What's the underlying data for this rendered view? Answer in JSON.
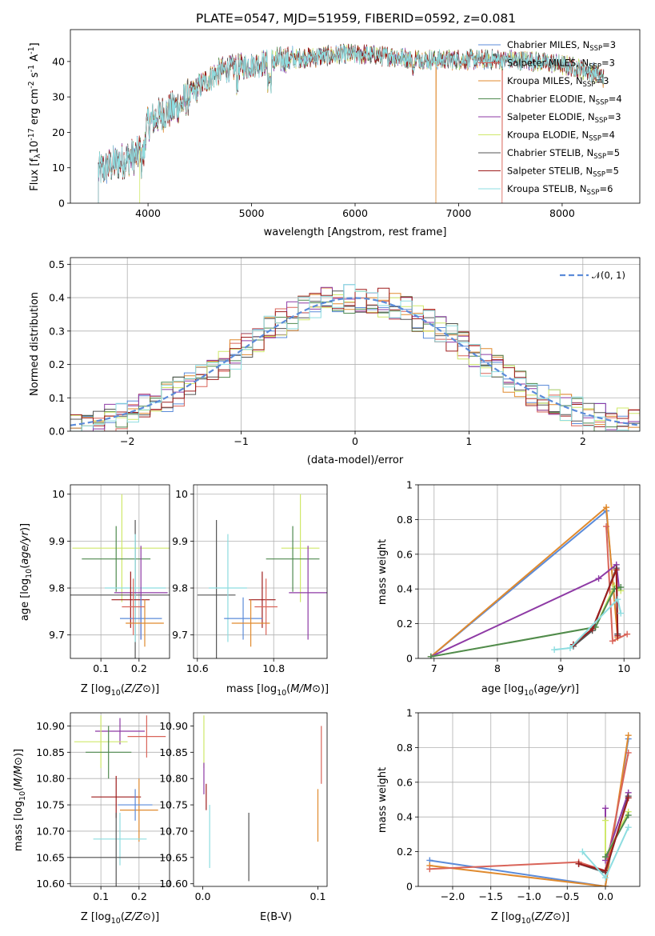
{
  "page_title": "PLATE=0547, MJD=51959, FIBERID=0592, z=0.081",
  "chart_data": [
    {
      "type": "line",
      "title": "PLATE=0547, MJD=51959, FIBERID=0592, z=0.081",
      "xlabel": "wavelength [Angstrom, rest frame]",
      "ylabel_parts": [
        "Flux [f",
        "λ",
        "10",
        "-17",
        " erg cm",
        "-2",
        " s",
        "-1",
        " A",
        "-1",
        "]"
      ],
      "xlim": [
        3250,
        8750
      ],
      "ylim": [
        0,
        49
      ],
      "xticks": [
        4000,
        5000,
        6000,
        7000,
        8000
      ],
      "yticks": [
        0,
        10,
        20,
        30,
        40
      ],
      "grid": false,
      "legend_position": "upper right",
      "legend_sub": "SSP",
      "spectrum_envelope": {
        "x": [
          3520,
          3700,
          3900,
          4000,
          4100,
          4300,
          4500,
          4700,
          4900,
          5100,
          5300,
          5500,
          5700,
          5900,
          6100,
          6300,
          6500,
          6700,
          6900,
          7100,
          7300,
          7500,
          7700,
          7900,
          8100,
          8300,
          8400
        ],
        "y": [
          9,
          11.5,
          13.5,
          22.5,
          24.5,
          27.5,
          33,
          37.5,
          38.5,
          39.5,
          40.5,
          41,
          41.5,
          42,
          42,
          41.5,
          41,
          40.5,
          40.5,
          40.5,
          40.5,
          40.5,
          40.2,
          39.5,
          38.5,
          37,
          35.5
        ]
      },
      "series": [
        {
          "name": "Chabrier MILES",
          "nssp": "3",
          "color": "#5b8bd9",
          "lw": 0.8
        },
        {
          "name": "Salpeter MILES",
          "nssp": "3",
          "color": "#d96459",
          "lw": 0.8
        },
        {
          "name": "Kroupa MILES",
          "nssp": "3",
          "color": "#e08a2e",
          "lw": 0.8
        },
        {
          "name": "Chabrier ELODIE",
          "nssp": "4",
          "color": "#4f8a4f",
          "lw": 0.8
        },
        {
          "name": "Salpeter ELODIE",
          "nssp": "3",
          "color": "#8e3aa5",
          "lw": 0.8
        },
        {
          "name": "Kroupa ELODIE",
          "nssp": "4",
          "color": "#cfe86a",
          "lw": 0.8
        },
        {
          "name": "Chabrier STELIB",
          "nssp": "5",
          "color": "#555555",
          "lw": 0.8
        },
        {
          "name": "Salpeter STELIB",
          "nssp": "5",
          "color": "#9e1c1c",
          "lw": 0.8
        },
        {
          "name": "Kroupa STELIB",
          "nssp": "6",
          "color": "#8edde0",
          "lw": 0.8
        }
      ],
      "spectrum_starts": [
        {
          "series": "Salpeter MILES",
          "x": 3520
        },
        {
          "series": "Kroupa ELODIE",
          "x": 3920
        }
      ],
      "spectrum_gaps": [
        {
          "series": "Kroupa MILES",
          "x": 6780
        },
        {
          "series": "Salpeter MILES",
          "x": 7420
        }
      ],
      "spectrum_end": 8400
    },
    {
      "type": "step",
      "xlabel": "(data-model)/error",
      "ylabel": "Normed distribution",
      "xlim": [
        -2.5,
        2.5
      ],
      "ylim": [
        0,
        0.52
      ],
      "xticks": [
        -2,
        -1,
        0,
        1,
        2
      ],
      "xtick_labels": [
        "−2",
        "−1",
        "0",
        "1",
        "2"
      ],
      "yticks": [
        0.0,
        0.1,
        0.2,
        0.3,
        0.4,
        0.5
      ],
      "ytick_labels": [
        "0.0",
        "0.1",
        "0.2",
        "0.3",
        "0.4",
        "0.5"
      ],
      "grid": true,
      "reference_curve": {
        "name": "𝒩(0, 1)",
        "mean": 0,
        "sigma": 1,
        "color": "#5b8bd9"
      },
      "bin_edges_start": -2.5,
      "bin_width": 0.1
    },
    {
      "type": "errorbar",
      "xlabel": "Z [log10(Z/Z⊙)]",
      "ylabel": "age  [log10(age/yr)]",
      "xlim": [
        0.02,
        0.28
      ],
      "ylim": [
        9.65,
        10.02
      ],
      "xticks": [
        0.1,
        0.2
      ],
      "yticks": [
        9.7,
        9.8,
        9.9,
        10.0
      ],
      "grid": true,
      "points": [
        {
          "series": "Kroupa ELODIE",
          "x": 0.155,
          "y": 9.885,
          "xerr": 0.13,
          "yerr": 0.115
        },
        {
          "series": "Chabrier ELODIE",
          "x": 0.14,
          "y": 9.862,
          "xerr": 0.09,
          "yerr": 0.07
        },
        {
          "series": "Chabrier STELIB",
          "x": 0.19,
          "y": 9.785,
          "xerr": 0.18,
          "yerr": 0.16
        },
        {
          "series": "Kroupa STELIB",
          "x": 0.19,
          "y": 9.8,
          "xerr": 0.08,
          "yerr": 0.115
        },
        {
          "series": "Salpeter ELODIE",
          "x": 0.205,
          "y": 9.79,
          "xerr": 0.07,
          "yerr": 0.1
        },
        {
          "series": "Salpeter STELIB",
          "x": 0.178,
          "y": 9.775,
          "xerr": 0.05,
          "yerr": 0.06
        },
        {
          "series": "Chabrier MILES",
          "x": 0.205,
          "y": 9.735,
          "xerr": 0.055,
          "yerr": 0.045
        },
        {
          "series": "Kroupa MILES",
          "x": 0.215,
          "y": 9.725,
          "xerr": 0.05,
          "yerr": 0.05
        },
        {
          "series": "Salpeter MILES",
          "x": 0.185,
          "y": 9.76,
          "xerr": 0.03,
          "yerr": 0.06
        }
      ]
    },
    {
      "type": "errorbar",
      "xlabel": "mass [log10(M/M⊙)]",
      "xlim": [
        10.59,
        10.94
      ],
      "ylim": [
        9.65,
        10.02
      ],
      "xticks": [
        10.6,
        10.8
      ],
      "yticks": [
        9.7,
        9.8,
        9.9,
        10.0
      ],
      "grid": true,
      "points": [
        {
          "series": "Kroupa ELODIE",
          "x": 10.87,
          "y": 9.885,
          "xerr": 0.05,
          "yerr": 0.115
        },
        {
          "series": "Chabrier ELODIE",
          "x": 10.85,
          "y": 9.862,
          "xerr": 0.07,
          "yerr": 0.07
        },
        {
          "series": "Chabrier STELIB",
          "x": 10.65,
          "y": 9.785,
          "xerr": 0.05,
          "yerr": 0.16
        },
        {
          "series": "Kroupa STELIB",
          "x": 10.68,
          "y": 9.8,
          "xerr": 0.05,
          "yerr": 0.115
        },
        {
          "series": "Salpeter ELODIE",
          "x": 10.89,
          "y": 9.79,
          "xerr": 0.05,
          "yerr": 0.1
        },
        {
          "series": "Salpeter STELIB",
          "x": 10.77,
          "y": 9.775,
          "xerr": 0.035,
          "yerr": 0.06
        },
        {
          "series": "Chabrier MILES",
          "x": 10.72,
          "y": 9.735,
          "xerr": 0.05,
          "yerr": 0.045
        },
        {
          "series": "Kroupa MILES",
          "x": 10.74,
          "y": 9.725,
          "xerr": 0.05,
          "yerr": 0.05
        },
        {
          "series": "Salpeter MILES",
          "x": 10.78,
          "y": 9.76,
          "xerr": 0.03,
          "yerr": 0.06
        }
      ]
    },
    {
      "type": "line",
      "xlabel": "age  [log10(age/yr)]",
      "ylabel": "mass weight",
      "xlim": [
        6.75,
        10.25
      ],
      "ylim": [
        0,
        1.0
      ],
      "xticks": [
        7,
        8,
        9,
        10
      ],
      "yticks": [
        0.0,
        0.2,
        0.4,
        0.6,
        0.8,
        1.0
      ],
      "grid": true,
      "series": [
        {
          "name": "Chabrier MILES",
          "x": [
            6.95,
            9.72,
            9.9
          ],
          "y": [
            0.01,
            0.85,
            0.14
          ]
        },
        {
          "name": "Kroupa MILES",
          "x": [
            6.95,
            9.72,
            9.9
          ],
          "y": [
            0.01,
            0.87,
            0.12
          ]
        },
        {
          "name": "Salpeter MILES",
          "x": [
            9.72,
            9.82,
            10.05
          ],
          "y": [
            0.76,
            0.1,
            0.14
          ]
        },
        {
          "name": "Salpeter ELODIE",
          "x": [
            6.95,
            9.6,
            9.88,
            9.92
          ],
          "y": [
            0.01,
            0.46,
            0.54,
            0.41
          ]
        },
        {
          "name": "Kroupa ELODIE",
          "x": [
            6.95,
            9.55,
            9.85,
            9.95
          ],
          "y": [
            0.01,
            0.18,
            0.42,
            0.39
          ]
        },
        {
          "name": "Chabrier ELODIE",
          "x": [
            6.95,
            9.55,
            9.85,
            9.95
          ],
          "y": [
            0.01,
            0.18,
            0.4,
            0.41
          ]
        },
        {
          "name": "Chabrier STELIB",
          "x": [
            9.2,
            9.5,
            9.88,
            9.9
          ],
          "y": [
            0.07,
            0.16,
            0.52,
            0.14
          ]
        },
        {
          "name": "Salpeter STELIB",
          "x": [
            9.2,
            9.5,
            9.88,
            9.9
          ],
          "y": [
            0.08,
            0.17,
            0.51,
            0.13
          ]
        },
        {
          "name": "Kroupa STELIB",
          "x": [
            8.9,
            9.15,
            9.9,
            9.95
          ],
          "y": [
            0.05,
            0.06,
            0.34,
            0.26
          ]
        }
      ]
    },
    {
      "type": "errorbar",
      "xlabel": "Z [log10(Z/Z⊙)]",
      "ylabel": "mass [log10(M/M⊙)]",
      "xlim": [
        0.02,
        0.28
      ],
      "ylim": [
        10.595,
        10.925
      ],
      "xticks": [
        0.1,
        0.2
      ],
      "yticks": [
        10.6,
        10.65,
        10.7,
        10.75,
        10.8,
        10.85,
        10.9
      ],
      "ytick_labels": [
        "10.60",
        "10.65",
        "10.70",
        "10.75",
        "10.80",
        "10.85",
        "10.90"
      ],
      "grid": true,
      "points": [
        {
          "series": "Salpeter ELODIE",
          "x": 0.15,
          "y": 10.89,
          "xerr": 0.065,
          "yerr": 0.025
        },
        {
          "series": "Kroupa ELODIE",
          "x": 0.1,
          "y": 10.87,
          "xerr": 0.07,
          "yerr": 0.05
        },
        {
          "series": "Chabrier ELODIE",
          "x": 0.12,
          "y": 10.85,
          "xerr": 0.06,
          "yerr": 0.05
        },
        {
          "series": "Salpeter MILES",
          "x": 0.22,
          "y": 10.88,
          "xerr": 0.05,
          "yerr": 0.04
        },
        {
          "series": "Salpeter STELIB",
          "x": 0.14,
          "y": 10.765,
          "xerr": 0.065,
          "yerr": 0.04
        },
        {
          "series": "Kroupa MILES",
          "x": 0.2,
          "y": 10.74,
          "xerr": 0.05,
          "yerr": 0.06
        },
        {
          "series": "Chabrier MILES",
          "x": 0.19,
          "y": 10.75,
          "xerr": 0.045,
          "yerr": 0.03
        },
        {
          "series": "Kroupa STELIB",
          "x": 0.15,
          "y": 10.685,
          "xerr": 0.07,
          "yerr": 0.05
        },
        {
          "series": "Chabrier STELIB",
          "x": 0.14,
          "y": 10.65,
          "xerr": 0.13,
          "yerr": 0.085
        }
      ]
    },
    {
      "type": "errorbar",
      "xlabel": "E(B-V)",
      "xlim": [
        -0.008,
        0.108
      ],
      "ylim": [
        10.595,
        10.925
      ],
      "xticks": [
        0.0,
        0.1
      ],
      "xtick_labels": [
        "0.0",
        "0.1"
      ],
      "yticks": [
        10.6,
        10.65,
        10.7,
        10.75,
        10.8,
        10.85,
        10.9
      ],
      "ytick_labels": [
        "10.60",
        "10.65",
        "10.70",
        "10.75",
        "10.80",
        "10.85",
        "10.90"
      ],
      "grid": false,
      "points": [
        {
          "series": "Kroupa ELODIE",
          "x": 0.001,
          "y": 10.87,
          "xerr": 0,
          "yerr": 0.05
        },
        {
          "series": "Salpeter ELODIE",
          "x": 0.001,
          "y": 10.8,
          "xerr": 0,
          "yerr": 0.03
        },
        {
          "series": "Salpeter STELIB",
          "x": 0.003,
          "y": 10.765,
          "xerr": 0,
          "yerr": 0.025
        },
        {
          "series": "Kroupa STELIB",
          "x": 0.006,
          "y": 10.69,
          "xerr": 0,
          "yerr": 0.06
        },
        {
          "series": "Chabrier STELIB",
          "x": 0.04,
          "y": 10.67,
          "xerr": 0,
          "yerr": 0.065
        },
        {
          "series": "Kroupa MILES",
          "x": 0.1,
          "y": 10.73,
          "xerr": 0,
          "yerr": 0.05
        },
        {
          "series": "Salpeter MILES",
          "x": 0.103,
          "y": 10.845,
          "xerr": 0,
          "yerr": 0.055
        }
      ]
    },
    {
      "type": "line",
      "xlabel": "Z [log10(Z/Z⊙)]",
      "ylabel": "mass weight",
      "xlim": [
        -2.45,
        0.45
      ],
      "ylim": [
        0,
        1.0
      ],
      "xticks": [
        -2.0,
        -1.5,
        -1.0,
        -0.5,
        0.0
      ],
      "xtick_labels": [
        "−2.0",
        "−1.5",
        "−1.0",
        "−0.5",
        "0.0"
      ],
      "yticks": [
        0.0,
        0.2,
        0.4,
        0.6,
        0.8,
        1.0
      ],
      "grid": true,
      "series": [
        {
          "name": "Chabrier MILES",
          "x": [
            -2.3,
            0.0,
            0.3
          ],
          "y": [
            0.15,
            0.0,
            0.85
          ]
        },
        {
          "name": "Kroupa MILES",
          "x": [
            -2.3,
            0.0,
            0.3
          ],
          "y": [
            0.12,
            0.0,
            0.87
          ]
        },
        {
          "name": "Salpeter MILES",
          "x": [
            -2.3,
            -0.35,
            0.0,
            0.3
          ],
          "y": [
            0.1,
            0.14,
            0.09,
            0.77
          ]
        },
        {
          "name": "Salpeter ELODIE",
          "x": [
            0.0,
            0.0,
            0.3
          ],
          "y": [
            0.45,
            0.15,
            0.54
          ]
        },
        {
          "name": "Kroupa ELODIE",
          "x": [
            0.0,
            0.0,
            0.3
          ],
          "y": [
            0.38,
            0.17,
            0.43
          ]
        },
        {
          "name": "Chabrier ELODIE",
          "x": [
            0.0,
            0.3
          ],
          "y": [
            0.17,
            0.41
          ]
        },
        {
          "name": "Chabrier STELIB",
          "x": [
            -0.35,
            0.0,
            0.3
          ],
          "y": [
            0.13,
            0.08,
            0.52
          ]
        },
        {
          "name": "Salpeter STELIB",
          "x": [
            -0.35,
            0.0,
            0.3
          ],
          "y": [
            0.13,
            0.09,
            0.51
          ]
        },
        {
          "name": "Kroupa STELIB",
          "x": [
            -0.3,
            0.0,
            0.3
          ],
          "y": [
            0.2,
            0.05,
            0.34
          ]
        }
      ]
    }
  ]
}
